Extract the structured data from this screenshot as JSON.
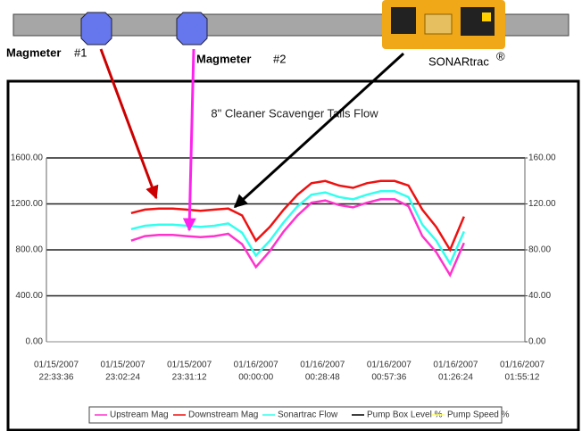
{
  "diagram": {
    "magmeters": [
      {
        "name": "Magmeter",
        "number": "#1"
      },
      {
        "name": "Magmeter",
        "number": "#2"
      }
    ],
    "sonar": {
      "name": "SONARtrac",
      "mark": "®"
    }
  },
  "chart_data": {
    "type": "line",
    "title": "8\" Cleaner Scavenger Tails Flow",
    "xticks": [
      {
        "date": "01/15/2007",
        "time": "22:33:36"
      },
      {
        "date": "01/15/2007",
        "time": "23:02:24"
      },
      {
        "date": "01/15/2007",
        "time": "23:31:12"
      },
      {
        "date": "01/16/2007",
        "time": "00:00:00"
      },
      {
        "date": "01/16/2007",
        "time": "00:28:48"
      },
      {
        "date": "01/16/2007",
        "time": "00:57:36"
      },
      {
        "date": "01/16/2007",
        "time": "01:26:24"
      },
      {
        "date": "01/16/2007",
        "time": "01:55:12"
      }
    ],
    "x": [
      "01/15/2007 23:06:00",
      "01/15/2007 23:12:00",
      "01/15/2007 23:18:00",
      "01/15/2007 23:24:00",
      "01/15/2007 23:30:00",
      "01/15/2007 23:36:00",
      "01/15/2007 23:42:00",
      "01/15/2007 23:48:00",
      "01/15/2007 23:54:00",
      "01/16/2007 00:00:00",
      "01/16/2007 00:06:00",
      "01/16/2007 00:12:00",
      "01/16/2007 00:18:00",
      "01/16/2007 00:24:00",
      "01/16/2007 00:30:00",
      "01/16/2007 00:36:00",
      "01/16/2007 00:42:00",
      "01/16/2007 00:48:00",
      "01/16/2007 00:54:00",
      "01/16/2007 01:00:00",
      "01/16/2007 01:06:00",
      "01/16/2007 01:12:00",
      "01/16/2007 01:18:00",
      "01/16/2007 01:24:00",
      "01/16/2007 01:30:00"
    ],
    "ylim": [
      0,
      1600
    ],
    "yticks": [
      {
        "value": 0,
        "label": "0.00"
      },
      {
        "value": 400,
        "label": "400.00"
      },
      {
        "value": 800,
        "label": "800.00"
      },
      {
        "value": 1200,
        "label": "1200.00"
      },
      {
        "value": 1600,
        "label": "1600.00"
      }
    ],
    "y2lim": [
      0,
      160
    ],
    "y2ticks": [
      {
        "value": 0,
        "label": "0.00"
      },
      {
        "value": 40,
        "label": "40.00"
      },
      {
        "value": 80,
        "label": "80.00"
      },
      {
        "value": 120,
        "label": "120.00"
      },
      {
        "value": 160,
        "label": "160.00"
      }
    ],
    "grid": true,
    "series": [
      {
        "name": "Upstream Mag",
        "color": "#ff33cc",
        "values": [
          880,
          920,
          930,
          930,
          920,
          910,
          920,
          940,
          850,
          650,
          790,
          960,
          1100,
          1210,
          1230,
          1190,
          1170,
          1210,
          1240,
          1240,
          1180,
          920,
          780,
          580,
          860
        ]
      },
      {
        "name": "Downstream Mag",
        "color": "#ee1111",
        "values": [
          1120,
          1150,
          1160,
          1160,
          1150,
          1140,
          1150,
          1160,
          1100,
          880,
          1000,
          1150,
          1280,
          1380,
          1400,
          1360,
          1340,
          1380,
          1400,
          1400,
          1360,
          1150,
          1000,
          800,
          1090
        ]
      },
      {
        "name": "Sonartrac Flow",
        "color": "#33ffee",
        "values": [
          980,
          1010,
          1020,
          1020,
          1010,
          1000,
          1010,
          1030,
          950,
          750,
          880,
          1040,
          1180,
          1280,
          1300,
          1260,
          1240,
          1280,
          1310,
          1310,
          1260,
          1020,
          880,
          680,
          960
        ]
      }
    ],
    "extra_legend": [
      {
        "name": "Pump Box Level %",
        "color": "#000000"
      },
      {
        "name": "Pump Speed %",
        "color": "#ffff66"
      }
    ]
  }
}
